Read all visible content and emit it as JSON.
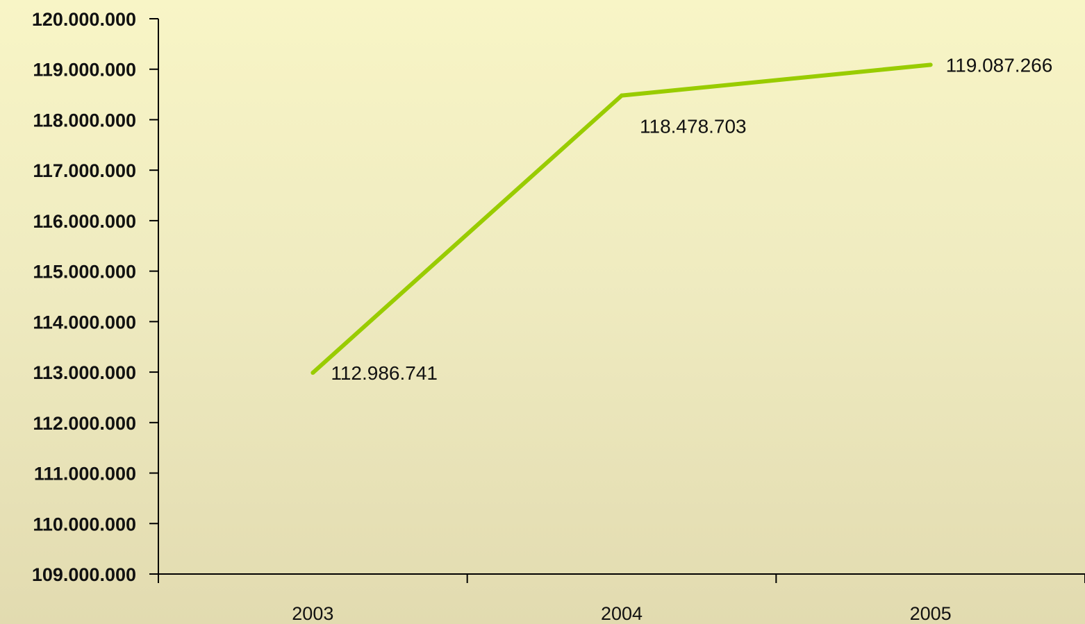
{
  "chart_data": {
    "type": "line",
    "categories": [
      "2003",
      "2004",
      "2005"
    ],
    "series": [
      {
        "values": [
          112986741,
          118478703,
          119087266
        ],
        "color": "#99cc00"
      }
    ],
    "data_labels": [
      "112.986.741",
      "118.478.703",
      "119.087.266"
    ],
    "y_ticks": [
      109000000,
      110000000,
      111000000,
      112000000,
      113000000,
      114000000,
      115000000,
      116000000,
      117000000,
      118000000,
      119000000,
      120000000
    ],
    "y_tick_labels": [
      "109.000.000",
      "110.000.000",
      "111.000.000",
      "112.000.000",
      "113.000.000",
      "114.000.000",
      "115.000.000",
      "116.000.000",
      "117.000.000",
      "118.000.000",
      "119.000.000",
      "120.000.000"
    ],
    "ylim": [
      109000000,
      120000000
    ],
    "title": "",
    "xlabel": "",
    "ylabel": "",
    "grid": false,
    "legend": "none"
  },
  "colors": {
    "axis": "#000000",
    "text": "#111111",
    "line": "#99cc00"
  }
}
